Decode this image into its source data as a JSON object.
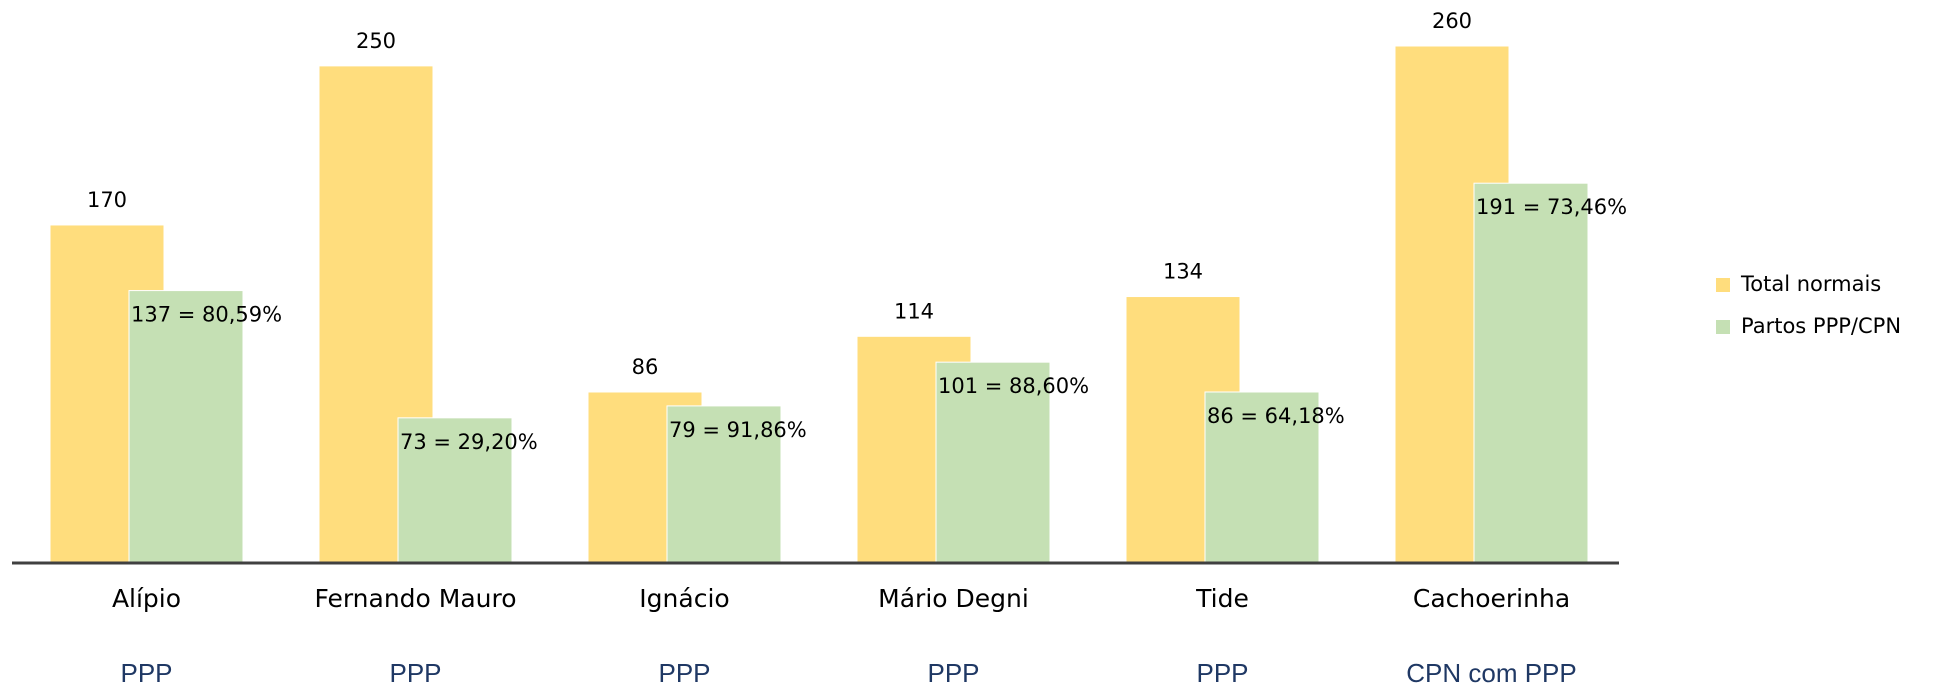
{
  "chart_data": {
    "type": "bar",
    "categories": [
      "Alípio",
      "Fernando Mauro",
      "Ignácio",
      "Mário Degni",
      "Tide",
      "Cachoerinha"
    ],
    "sublabels": [
      "PPP",
      "PPP",
      "PPP",
      "PPP",
      "PPP",
      "CPN com PPP"
    ],
    "series": [
      {
        "name": "Total normais",
        "color": "#FFDD7D",
        "values": [
          170,
          250,
          86,
          114,
          134,
          260
        ]
      },
      {
        "name": "Partos PPP/CPN",
        "color": "#C5E0B4",
        "values": [
          137,
          73,
          79,
          101,
          86,
          191
        ],
        "value_labels": [
          "137 = 80,59%",
          "73 = 29,20%",
          "79 = 91,86%",
          "101 = 88,60%",
          "86 = 64,18%",
          "191 = 73,46%"
        ]
      }
    ],
    "legend": "right"
  }
}
